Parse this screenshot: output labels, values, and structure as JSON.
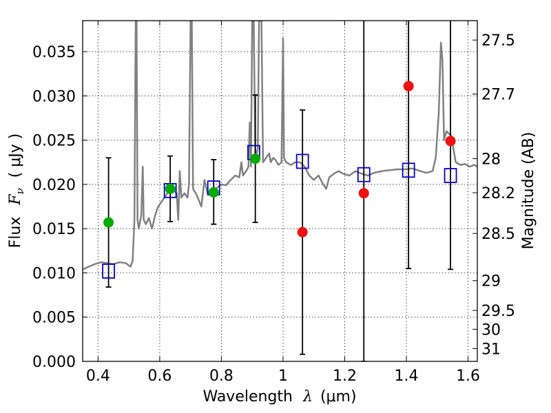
{
  "chart_data": {
    "type": "scatter",
    "title": "",
    "xlabel": {
      "prefix": "Wavelength",
      "symbol": "λ",
      "unit": "(μm)"
    },
    "ylabel": {
      "prefix": "Flux",
      "symbol": "F",
      "subscript": "ν",
      "unit": "( μJy )"
    },
    "y2label": "Magnitude (AB)",
    "xlim": [
      0.35,
      1.63
    ],
    "ylim": [
      0.0,
      0.0385
    ],
    "grid": true,
    "x_ticks": [
      {
        "v": 0.4,
        "label": "0.4"
      },
      {
        "v": 0.6,
        "label": "0.6"
      },
      {
        "v": 0.8,
        "label": "0.8"
      },
      {
        "v": 1.0,
        "label": "1"
      },
      {
        "v": 1.2,
        "label": "1.2"
      },
      {
        "v": 1.4,
        "label": "1.4"
      },
      {
        "v": 1.6,
        "label": "1.6"
      }
    ],
    "y_ticks": [
      {
        "v": 0.0,
        "label": "0.000"
      },
      {
        "v": 0.005,
        "label": "0.005"
      },
      {
        "v": 0.01,
        "label": "0.010"
      },
      {
        "v": 0.015,
        "label": "0.015"
      },
      {
        "v": 0.02,
        "label": "0.020"
      },
      {
        "v": 0.025,
        "label": "0.025"
      },
      {
        "v": 0.03,
        "label": "0.030"
      },
      {
        "v": 0.035,
        "label": "0.035"
      }
    ],
    "mag_ticks": [
      {
        "mag": 27.5,
        "label": "27.5"
      },
      {
        "mag": 27.7,
        "label": "27.7"
      },
      {
        "mag": 28.0,
        "label": "28"
      },
      {
        "mag": 28.2,
        "label": "28.2"
      },
      {
        "mag": 28.5,
        "label": "28.5"
      },
      {
        "mag": 29.0,
        "label": "29"
      },
      {
        "mag": 29.5,
        "label": "29.5"
      },
      {
        "mag": 30.0,
        "label": "30"
      },
      {
        "mag": 31.0,
        "label": "31"
      }
    ],
    "colors": {
      "spectrum": "#808080",
      "model_box": "#0000cc",
      "detection": "#00aa00",
      "upper": "#ee1111",
      "errorbar": "#000000"
    },
    "model_spectrum": [
      [
        0.35,
        0.0104
      ],
      [
        0.37,
        0.0107
      ],
      [
        0.39,
        0.011
      ],
      [
        0.41,
        0.0112
      ],
      [
        0.43,
        0.0111
      ],
      [
        0.45,
        0.011
      ],
      [
        0.47,
        0.0112
      ],
      [
        0.49,
        0.0111
      ],
      [
        0.505,
        0.0107
      ],
      [
        0.512,
        0.0113
      ],
      [
        0.518,
        0.016
      ],
      [
        0.522,
        0.0385
      ],
      [
        0.525,
        0.0385
      ],
      [
        0.528,
        0.016
      ],
      [
        0.532,
        0.015
      ],
      [
        0.54,
        0.0165
      ],
      [
        0.545,
        0.022
      ],
      [
        0.548,
        0.016
      ],
      [
        0.555,
        0.0155
      ],
      [
        0.565,
        0.0162
      ],
      [
        0.575,
        0.015
      ],
      [
        0.585,
        0.0165
      ],
      [
        0.595,
        0.0175
      ],
      [
        0.605,
        0.018
      ],
      [
        0.615,
        0.0185
      ],
      [
        0.625,
        0.019
      ],
      [
        0.635,
        0.0192
      ],
      [
        0.645,
        0.0193
      ],
      [
        0.655,
        0.019
      ],
      [
        0.66,
        0.016
      ],
      [
        0.665,
        0.0215
      ],
      [
        0.67,
        0.0185
      ],
      [
        0.68,
        0.019
      ],
      [
        0.69,
        0.0185
      ],
      [
        0.695,
        0.02
      ],
      [
        0.7,
        0.0385
      ],
      [
        0.704,
        0.0385
      ],
      [
        0.708,
        0.0195
      ],
      [
        0.72,
        0.0188
      ],
      [
        0.735,
        0.0175
      ],
      [
        0.745,
        0.0205
      ],
      [
        0.755,
        0.019
      ],
      [
        0.77,
        0.0192
      ],
      [
        0.785,
        0.0196
      ],
      [
        0.8,
        0.02
      ],
      [
        0.815,
        0.0199
      ],
      [
        0.83,
        0.0205
      ],
      [
        0.845,
        0.021
      ],
      [
        0.858,
        0.0208
      ],
      [
        0.865,
        0.0225
      ],
      [
        0.87,
        0.021
      ],
      [
        0.88,
        0.0215
      ],
      [
        0.888,
        0.022
      ],
      [
        0.892,
        0.027
      ],
      [
        0.896,
        0.022
      ],
      [
        0.9,
        0.0385
      ],
      [
        0.905,
        0.0385
      ],
      [
        0.91,
        0.023
      ],
      [
        0.918,
        0.024
      ],
      [
        0.922,
        0.0385
      ],
      [
        0.93,
        0.0385
      ],
      [
        0.935,
        0.0225
      ],
      [
        0.945,
        0.023
      ],
      [
        0.955,
        0.0235
      ],
      [
        0.96,
        0.0225
      ],
      [
        0.968,
        0.023
      ],
      [
        0.975,
        0.0228
      ],
      [
        0.985,
        0.0222
      ],
      [
        0.995,
        0.0225
      ],
      [
        1.0,
        0.0365
      ],
      [
        1.003,
        0.023
      ],
      [
        1.01,
        0.0225
      ],
      [
        1.025,
        0.0222
      ],
      [
        1.04,
        0.0225
      ],
      [
        1.055,
        0.0225
      ],
      [
        1.07,
        0.022
      ],
      [
        1.085,
        0.021
      ],
      [
        1.1,
        0.0205
      ],
      [
        1.115,
        0.021
      ],
      [
        1.13,
        0.02
      ],
      [
        1.14,
        0.0195
      ],
      [
        1.15,
        0.0208
      ],
      [
        1.165,
        0.0212
      ],
      [
        1.18,
        0.0215
      ],
      [
        1.195,
        0.0212
      ],
      [
        1.215,
        0.021
      ],
      [
        1.235,
        0.0215
      ],
      [
        1.255,
        0.0212
      ],
      [
        1.275,
        0.021
      ],
      [
        1.295,
        0.0213
      ],
      [
        1.32,
        0.0215
      ],
      [
        1.345,
        0.0216
      ],
      [
        1.37,
        0.0217
      ],
      [
        1.395,
        0.0217
      ],
      [
        1.42,
        0.0218
      ],
      [
        1.445,
        0.0215
      ],
      [
        1.465,
        0.0213
      ],
      [
        1.485,
        0.0215
      ],
      [
        1.495,
        0.023
      ],
      [
        1.505,
        0.028
      ],
      [
        1.512,
        0.036
      ],
      [
        1.517,
        0.034
      ],
      [
        1.522,
        0.025
      ],
      [
        1.53,
        0.026
      ],
      [
        1.545,
        0.0255
      ],
      [
        1.56,
        0.0225
      ],
      [
        1.575,
        0.0222
      ],
      [
        1.59,
        0.0223
      ],
      [
        1.605,
        0.022
      ],
      [
        1.62,
        0.0222
      ],
      [
        1.63,
        0.022
      ]
    ],
    "model_photometry": [
      {
        "x": 0.434,
        "y": 0.0102
      },
      {
        "x": 0.634,
        "y": 0.0193
      },
      {
        "x": 0.775,
        "y": 0.0196
      },
      {
        "x": 0.905,
        "y": 0.0236
      },
      {
        "x": 1.063,
        "y": 0.0226
      },
      {
        "x": 1.262,
        "y": 0.0211
      },
      {
        "x": 1.407,
        "y": 0.0216
      },
      {
        "x": 1.543,
        "y": 0.021
      }
    ],
    "detections": [
      {
        "x": 0.434,
        "y": 0.0157,
        "err_lo": 0.0084,
        "err_hi": 0.023
      },
      {
        "x": 0.634,
        "y": 0.0195,
        "err_lo": 0.0158,
        "err_hi": 0.0232
      },
      {
        "x": 0.775,
        "y": 0.0191,
        "err_lo": 0.0155,
        "err_hi": 0.0228
      },
      {
        "x": 0.91,
        "y": 0.0229,
        "err_lo": 0.0157,
        "err_hi": 0.0301
      }
    ],
    "non_detections": [
      {
        "x": 1.063,
        "y": 0.0146,
        "err_lo": 0.0008,
        "err_hi": 0.0284
      },
      {
        "x": 1.262,
        "y": 0.019,
        "err_lo": 0.0,
        "err_hi": 0.0385
      },
      {
        "x": 1.407,
        "y": 0.0311,
        "err_lo": 0.0105,
        "err_hi": 0.0385
      },
      {
        "x": 1.543,
        "y": 0.0249,
        "err_lo": 0.0104,
        "err_hi": 0.0385
      }
    ]
  }
}
